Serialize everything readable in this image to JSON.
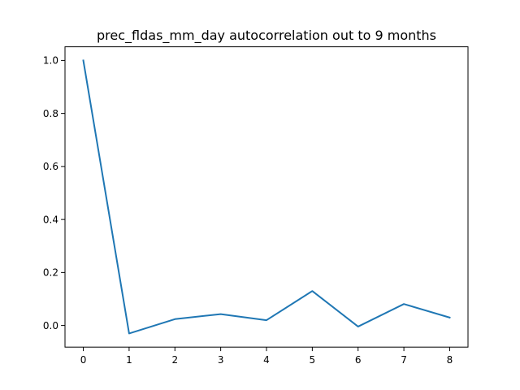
{
  "chart_data": {
    "type": "line",
    "title": "prec_fldas_mm_day autocorrelation out to 9 months",
    "xlabel": "",
    "ylabel": "",
    "x": [
      0,
      1,
      2,
      3,
      4,
      5,
      6,
      7,
      8
    ],
    "series": [
      {
        "values": [
          1.0,
          -0.03,
          0.024,
          0.043,
          0.02,
          0.13,
          -0.004,
          0.081,
          0.03
        ],
        "color": "#1f77b4"
      }
    ],
    "xlim": [
      -0.4,
      8.4
    ],
    "ylim": [
      -0.0815,
      1.0515
    ],
    "xticks": [
      "0",
      "1",
      "2",
      "3",
      "4",
      "5",
      "6",
      "7",
      "8"
    ],
    "yticks": [
      "0.0",
      "0.2",
      "0.4",
      "0.6",
      "0.8",
      "1.0"
    ],
    "ytick_values": [
      0.0,
      0.2,
      0.4,
      0.6,
      0.8,
      1.0
    ],
    "grid": false,
    "legend": false
  }
}
